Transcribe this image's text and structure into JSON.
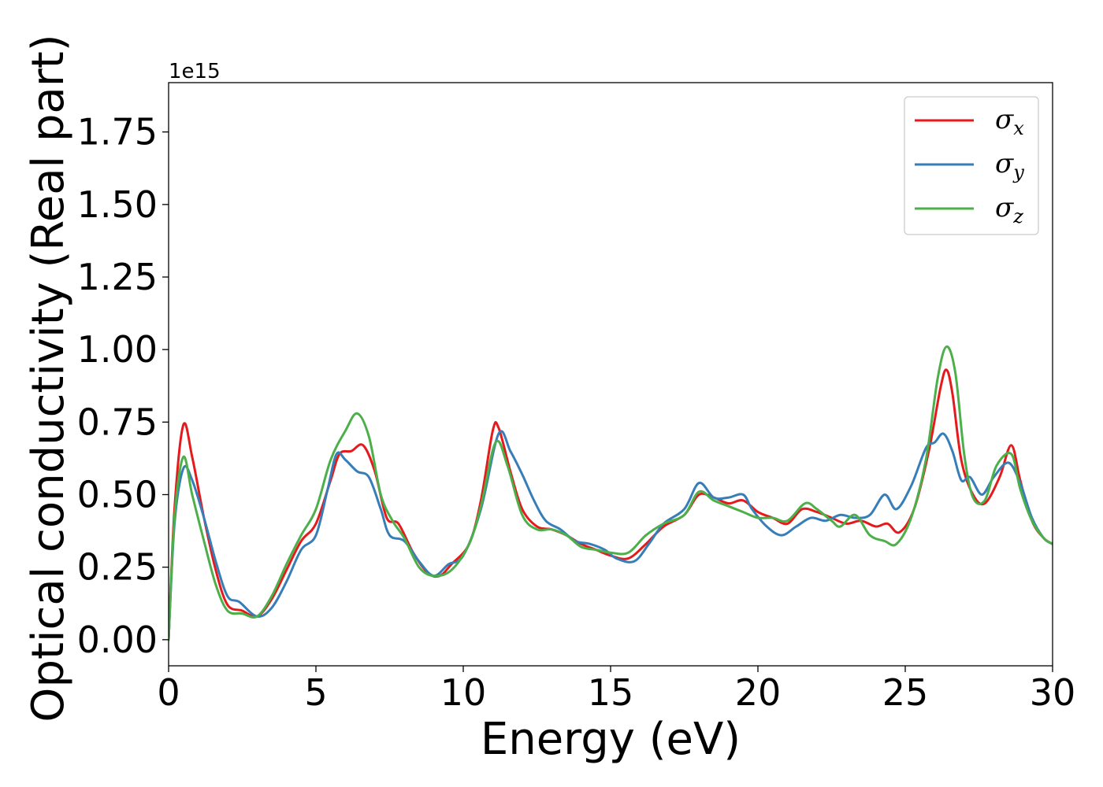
{
  "chart_data": {
    "type": "line",
    "title": "",
    "xlabel": "Energy (eV)",
    "ylabel": "Optical conductivity (Real part)",
    "y_offset_label": "1e15",
    "xlim": [
      0,
      30
    ],
    "ylim": [
      -0.09,
      1.92
    ],
    "x_ticks": [
      0,
      5,
      10,
      15,
      20,
      25,
      30
    ],
    "x_tick_labels": [
      "0",
      "5",
      "10",
      "15",
      "20",
      "25",
      "30"
    ],
    "y_ticks": [
      0.0,
      0.25,
      0.5,
      0.75,
      1.0,
      1.25,
      1.5,
      1.75
    ],
    "y_tick_labels": [
      "0.00",
      "0.25",
      "0.50",
      "0.75",
      "1.00",
      "1.25",
      "1.50",
      "1.75"
    ],
    "grid": false,
    "legend_position": "top-right",
    "series": [
      {
        "name": "σx",
        "symbol": "σ",
        "sub": "x",
        "color": "#e41a1c",
        "points": [
          [
            0,
            0
          ],
          [
            0.2,
            0.45
          ],
          [
            0.5,
            0.74
          ],
          [
            0.8,
            0.63
          ],
          [
            1.2,
            0.42
          ],
          [
            1.6,
            0.24
          ],
          [
            2.0,
            0.12
          ],
          [
            2.5,
            0.1
          ],
          [
            3.0,
            0.08
          ],
          [
            3.5,
            0.14
          ],
          [
            4.0,
            0.24
          ],
          [
            4.5,
            0.34
          ],
          [
            5.0,
            0.4
          ],
          [
            5.5,
            0.55
          ],
          [
            5.8,
            0.64
          ],
          [
            6.2,
            0.65
          ],
          [
            6.6,
            0.67
          ],
          [
            7.0,
            0.58
          ],
          [
            7.4,
            0.42
          ],
          [
            7.8,
            0.4
          ],
          [
            8.3,
            0.3
          ],
          [
            8.8,
            0.23
          ],
          [
            9.2,
            0.22
          ],
          [
            9.6,
            0.26
          ],
          [
            10.2,
            0.33
          ],
          [
            10.6,
            0.48
          ],
          [
            11.0,
            0.72
          ],
          [
            11.2,
            0.73
          ],
          [
            11.6,
            0.58
          ],
          [
            12.0,
            0.45
          ],
          [
            12.5,
            0.39
          ],
          [
            13.0,
            0.38
          ],
          [
            13.5,
            0.36
          ],
          [
            14.0,
            0.33
          ],
          [
            14.5,
            0.31
          ],
          [
            15.0,
            0.29
          ],
          [
            15.6,
            0.28
          ],
          [
            16.2,
            0.33
          ],
          [
            16.8,
            0.39
          ],
          [
            17.5,
            0.43
          ],
          [
            18.0,
            0.5
          ],
          [
            18.5,
            0.49
          ],
          [
            19.0,
            0.47
          ],
          [
            19.5,
            0.48
          ],
          [
            20.0,
            0.44
          ],
          [
            20.5,
            0.42
          ],
          [
            21.0,
            0.4
          ],
          [
            21.5,
            0.45
          ],
          [
            22.0,
            0.44
          ],
          [
            22.5,
            0.42
          ],
          [
            23.0,
            0.4
          ],
          [
            23.5,
            0.41
          ],
          [
            24.0,
            0.39
          ],
          [
            24.4,
            0.4
          ],
          [
            24.8,
            0.37
          ],
          [
            25.3,
            0.45
          ],
          [
            25.8,
            0.65
          ],
          [
            26.2,
            0.87
          ],
          [
            26.4,
            0.93
          ],
          [
            26.6,
            0.85
          ],
          [
            26.9,
            0.62
          ],
          [
            27.3,
            0.5
          ],
          [
            27.7,
            0.47
          ],
          [
            28.2,
            0.56
          ],
          [
            28.6,
            0.67
          ],
          [
            28.9,
            0.55
          ],
          [
            29.3,
            0.41
          ],
          [
            29.7,
            0.35
          ],
          [
            30.0,
            0.33
          ]
        ]
      },
      {
        "name": "σy",
        "symbol": "σ",
        "sub": "y",
        "color": "#377eb8",
        "points": [
          [
            0,
            0
          ],
          [
            0.2,
            0.4
          ],
          [
            0.5,
            0.59
          ],
          [
            0.8,
            0.55
          ],
          [
            1.2,
            0.42
          ],
          [
            1.6,
            0.27
          ],
          [
            2.0,
            0.15
          ],
          [
            2.4,
            0.13
          ],
          [
            3.0,
            0.08
          ],
          [
            3.5,
            0.11
          ],
          [
            4.0,
            0.2
          ],
          [
            4.5,
            0.31
          ],
          [
            5.0,
            0.36
          ],
          [
            5.4,
            0.52
          ],
          [
            5.7,
            0.64
          ],
          [
            6.0,
            0.62
          ],
          [
            6.4,
            0.58
          ],
          [
            6.8,
            0.56
          ],
          [
            7.2,
            0.45
          ],
          [
            7.5,
            0.36
          ],
          [
            8.0,
            0.34
          ],
          [
            8.5,
            0.27
          ],
          [
            9.0,
            0.22
          ],
          [
            9.5,
            0.26
          ],
          [
            10.0,
            0.29
          ],
          [
            10.6,
            0.45
          ],
          [
            11.2,
            0.71
          ],
          [
            11.6,
            0.65
          ],
          [
            12.0,
            0.57
          ],
          [
            12.4,
            0.48
          ],
          [
            12.8,
            0.41
          ],
          [
            13.3,
            0.38
          ],
          [
            13.8,
            0.34
          ],
          [
            14.3,
            0.33
          ],
          [
            14.8,
            0.31
          ],
          [
            15.2,
            0.28
          ],
          [
            15.8,
            0.27
          ],
          [
            16.3,
            0.33
          ],
          [
            16.8,
            0.4
          ],
          [
            17.5,
            0.45
          ],
          [
            18.0,
            0.54
          ],
          [
            18.5,
            0.49
          ],
          [
            19.0,
            0.49
          ],
          [
            19.5,
            0.5
          ],
          [
            19.8,
            0.45
          ],
          [
            20.3,
            0.39
          ],
          [
            20.8,
            0.36
          ],
          [
            21.3,
            0.39
          ],
          [
            21.8,
            0.42
          ],
          [
            22.3,
            0.41
          ],
          [
            22.8,
            0.43
          ],
          [
            23.3,
            0.42
          ],
          [
            23.8,
            0.43
          ],
          [
            24.3,
            0.5
          ],
          [
            24.7,
            0.45
          ],
          [
            25.2,
            0.53
          ],
          [
            25.7,
            0.66
          ],
          [
            26.0,
            0.68
          ],
          [
            26.3,
            0.71
          ],
          [
            26.6,
            0.65
          ],
          [
            26.9,
            0.55
          ],
          [
            27.2,
            0.56
          ],
          [
            27.6,
            0.5
          ],
          [
            28.0,
            0.56
          ],
          [
            28.5,
            0.61
          ],
          [
            28.9,
            0.54
          ],
          [
            29.3,
            0.42
          ],
          [
            29.7,
            0.35
          ],
          [
            30.0,
            0.33
          ]
        ]
      },
      {
        "name": "σz",
        "symbol": "σ",
        "sub": "z",
        "color": "#4daf4a",
        "points": [
          [
            0,
            0
          ],
          [
            0.2,
            0.42
          ],
          [
            0.5,
            0.63
          ],
          [
            0.8,
            0.5
          ],
          [
            1.2,
            0.34
          ],
          [
            1.6,
            0.19
          ],
          [
            2.0,
            0.1
          ],
          [
            2.5,
            0.09
          ],
          [
            3.0,
            0.08
          ],
          [
            3.5,
            0.15
          ],
          [
            4.0,
            0.26
          ],
          [
            4.5,
            0.36
          ],
          [
            5.0,
            0.45
          ],
          [
            5.5,
            0.62
          ],
          [
            6.0,
            0.72
          ],
          [
            6.4,
            0.78
          ],
          [
            6.8,
            0.7
          ],
          [
            7.2,
            0.5
          ],
          [
            7.6,
            0.41
          ],
          [
            8.0,
            0.35
          ],
          [
            8.5,
            0.25
          ],
          [
            9.0,
            0.22
          ],
          [
            9.6,
            0.24
          ],
          [
            10.2,
            0.33
          ],
          [
            10.6,
            0.46
          ],
          [
            11.1,
            0.68
          ],
          [
            11.5,
            0.6
          ],
          [
            12.0,
            0.43
          ],
          [
            12.5,
            0.38
          ],
          [
            13.0,
            0.38
          ],
          [
            13.5,
            0.36
          ],
          [
            14.0,
            0.32
          ],
          [
            14.5,
            0.31
          ],
          [
            15.0,
            0.3
          ],
          [
            15.6,
            0.3
          ],
          [
            16.2,
            0.36
          ],
          [
            16.8,
            0.4
          ],
          [
            17.5,
            0.43
          ],
          [
            18.0,
            0.51
          ],
          [
            18.5,
            0.48
          ],
          [
            19.0,
            0.46
          ],
          [
            19.5,
            0.44
          ],
          [
            20.0,
            0.42
          ],
          [
            20.5,
            0.42
          ],
          [
            21.0,
            0.41
          ],
          [
            21.6,
            0.47
          ],
          [
            22.0,
            0.45
          ],
          [
            22.5,
            0.41
          ],
          [
            22.8,
            0.39
          ],
          [
            23.3,
            0.43
          ],
          [
            23.8,
            0.36
          ],
          [
            24.3,
            0.34
          ],
          [
            24.7,
            0.33
          ],
          [
            25.2,
            0.42
          ],
          [
            25.7,
            0.62
          ],
          [
            26.1,
            0.9
          ],
          [
            26.4,
            1.01
          ],
          [
            26.7,
            0.92
          ],
          [
            27.0,
            0.64
          ],
          [
            27.3,
            0.49
          ],
          [
            27.7,
            0.48
          ],
          [
            28.1,
            0.6
          ],
          [
            28.6,
            0.64
          ],
          [
            28.9,
            0.52
          ],
          [
            29.3,
            0.41
          ],
          [
            29.7,
            0.35
          ],
          [
            30.0,
            0.33
          ]
        ]
      }
    ]
  }
}
